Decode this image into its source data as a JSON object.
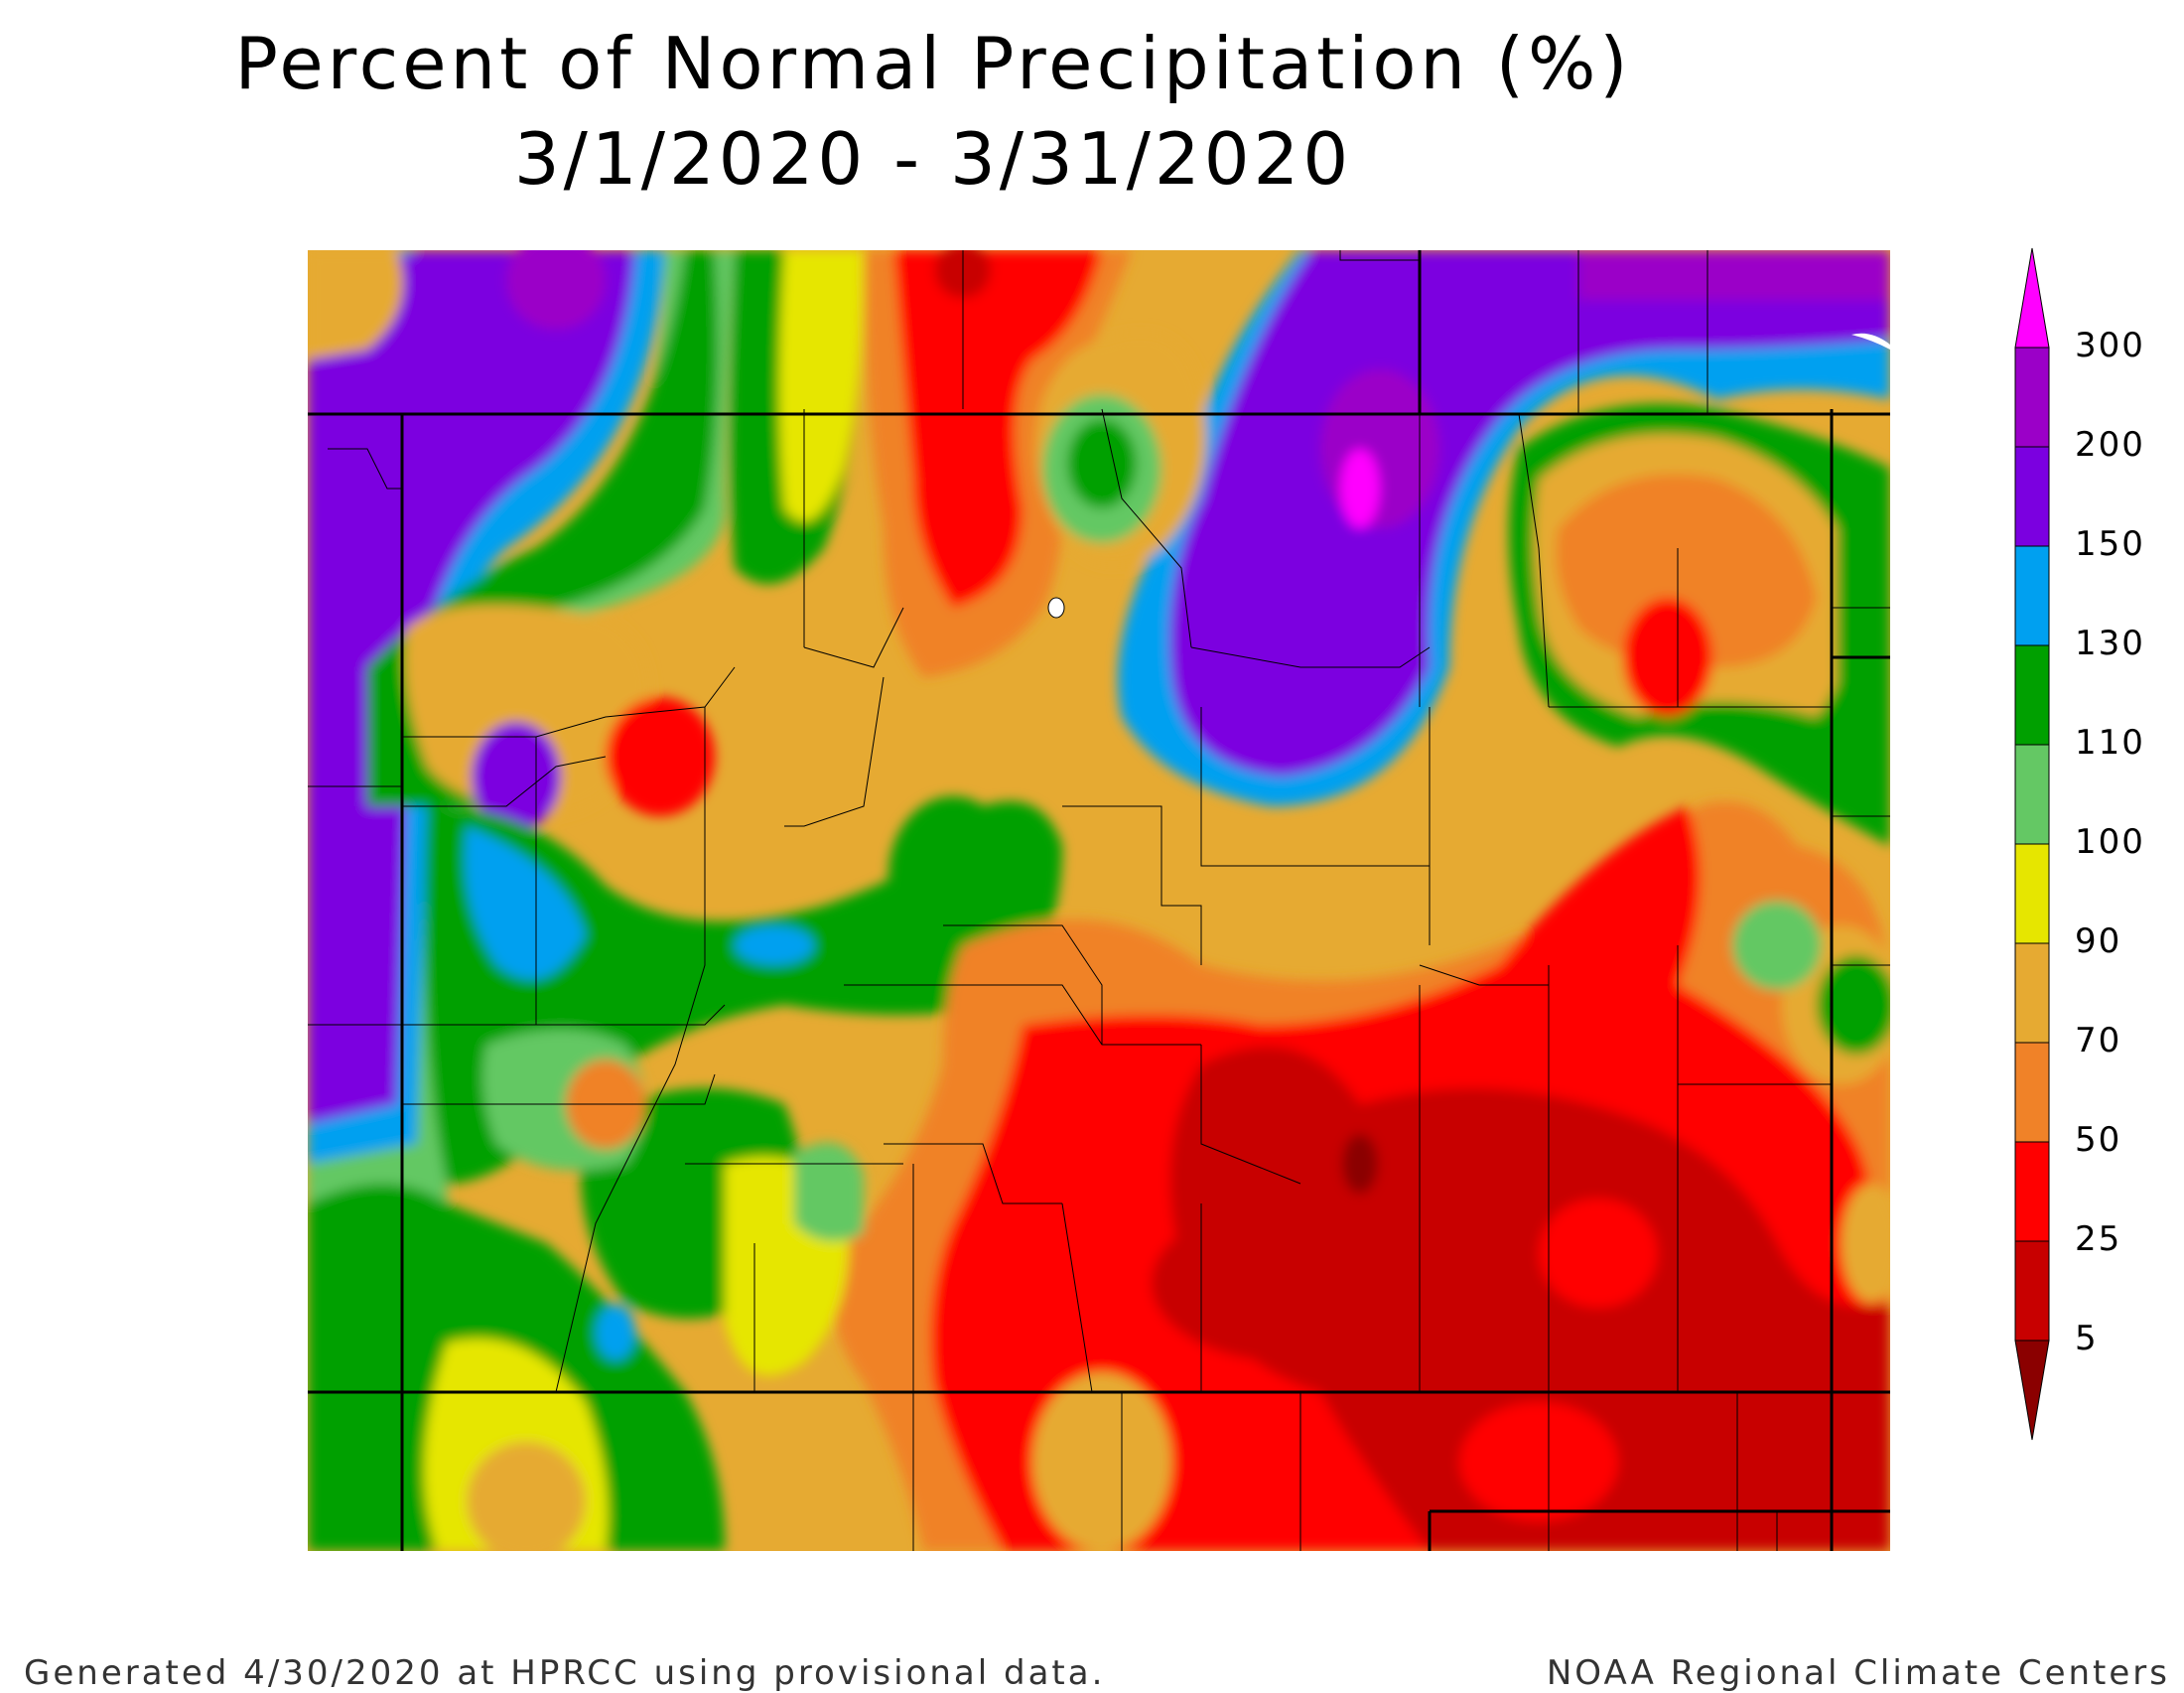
{
  "title": "Percent of Normal Precipitation (%)",
  "subtitle": "3/1/2020 - 3/31/2020",
  "legend": {
    "bins": [
      {
        "label": "300",
        "color": "#ff00ff"
      },
      {
        "label": "200",
        "color": "#9b00c8"
      },
      {
        "label": "150",
        "color": "#7b00e0"
      },
      {
        "label": "130",
        "color": "#00a0f0"
      },
      {
        "label": "110",
        "color": "#00a000"
      },
      {
        "label": "100",
        "color": "#64c864"
      },
      {
        "label": "90",
        "color": "#e6e600"
      },
      {
        "label": "70",
        "color": "#e6aa32"
      },
      {
        "label": "50",
        "color": "#f08228"
      },
      {
        "label": "25",
        "color": "#ff0000"
      },
      {
        "label": "5",
        "color": "#c80000"
      }
    ],
    "lowest_color": "#8b0000",
    "top_arrow_color": "#ff00ff",
    "bottom_arrow_color": "#8b0000"
  },
  "footer": {
    "left": "Generated 4/30/2020 at HPRCC using provisional data.",
    "right": "NOAA Regional Climate Centers"
  }
}
